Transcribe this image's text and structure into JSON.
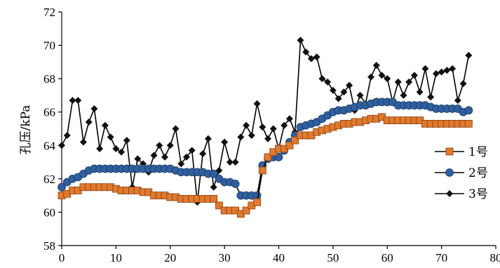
{
  "chart_data": {
    "type": "line",
    "title": "",
    "xlabel": "",
    "ylabel": "孔压/kPa",
    "xlim": [
      0,
      80
    ],
    "ylim": [
      58,
      72
    ],
    "x_ticks": [
      "0",
      "10",
      "20",
      "30",
      "40",
      "50",
      "60",
      "70",
      "80"
    ],
    "y_ticks": [
      "58",
      "60",
      "62",
      "64",
      "66",
      "68",
      "70",
      "72"
    ],
    "grid": false,
    "legend_position": "right",
    "series": [
      {
        "name": "1号",
        "color": "#e07a2e",
        "marker": "square",
        "x": [
          0,
          1,
          2,
          3,
          4,
          5,
          6,
          7,
          8,
          9,
          10,
          11,
          12,
          13,
          14,
          15,
          16,
          17,
          18,
          19,
          20,
          21,
          22,
          23,
          24,
          25,
          26,
          27,
          28,
          29,
          30,
          31,
          32,
          33,
          34,
          35,
          36,
          37,
          38,
          39,
          40,
          41,
          42,
          43,
          44,
          45,
          46,
          47,
          48,
          49,
          50,
          51,
          52,
          53,
          54,
          55,
          56,
          57,
          58,
          59,
          60,
          61,
          62,
          63,
          64,
          65,
          66,
          67,
          68,
          69,
          70,
          71,
          72,
          73,
          74,
          75
        ],
        "values": [
          61.0,
          61.1,
          61.3,
          61.3,
          61.5,
          61.5,
          61.5,
          61.5,
          61.5,
          61.5,
          61.4,
          61.3,
          61.3,
          61.3,
          61.3,
          61.2,
          61.2,
          61.0,
          61.0,
          61.0,
          60.9,
          60.9,
          60.8,
          60.8,
          60.8,
          60.8,
          60.8,
          60.8,
          60.8,
          60.4,
          60.1,
          60.1,
          60.1,
          59.9,
          60.1,
          60.4,
          60.6,
          62.5,
          63.3,
          63.6,
          63.8,
          63.8,
          64.0,
          64.3,
          64.6,
          64.6,
          64.6,
          64.8,
          64.9,
          65.0,
          65.1,
          65.2,
          65.3,
          65.3,
          65.4,
          65.4,
          65.5,
          65.6,
          65.6,
          65.7,
          65.5,
          65.5,
          65.5,
          65.5,
          65.5,
          65.5,
          65.5,
          65.3,
          65.3,
          65.3,
          65.3,
          65.3,
          65.3,
          65.3,
          65.3,
          65.3
        ]
      },
      {
        "name": "2号",
        "color": "#2f5f9e",
        "marker": "circle",
        "x": [
          0,
          1,
          2,
          3,
          4,
          5,
          6,
          7,
          8,
          9,
          10,
          11,
          12,
          13,
          14,
          15,
          16,
          17,
          18,
          19,
          20,
          21,
          22,
          23,
          24,
          25,
          26,
          27,
          28,
          29,
          30,
          31,
          32,
          33,
          34,
          35,
          36,
          37,
          38,
          39,
          40,
          41,
          42,
          43,
          44,
          45,
          46,
          47,
          48,
          49,
          50,
          51,
          52,
          53,
          54,
          55,
          56,
          57,
          58,
          59,
          60,
          61,
          62,
          63,
          64,
          65,
          66,
          67,
          68,
          69,
          70,
          71,
          72,
          73,
          74,
          75
        ],
        "values": [
          61.5,
          61.8,
          62.0,
          62.1,
          62.3,
          62.5,
          62.6,
          62.6,
          62.6,
          62.6,
          62.6,
          62.6,
          62.6,
          62.6,
          62.6,
          62.6,
          62.6,
          62.6,
          62.6,
          62.6,
          62.6,
          62.5,
          62.4,
          62.4,
          62.4,
          62.4,
          62.4,
          62.3,
          62.3,
          62.0,
          61.8,
          61.8,
          61.7,
          61.0,
          61.0,
          61.0,
          61.0,
          62.8,
          63.2,
          63.3,
          63.3,
          63.7,
          64.2,
          64.6,
          65.1,
          65.2,
          65.3,
          65.4,
          65.6,
          65.8,
          66.0,
          66.1,
          66.1,
          66.2,
          66.3,
          66.4,
          66.4,
          66.5,
          66.6,
          66.6,
          66.6,
          66.6,
          66.4,
          66.4,
          66.4,
          66.4,
          66.4,
          66.4,
          66.3,
          66.2,
          66.2,
          66.2,
          66.2,
          66.2,
          66.0,
          66.1
        ]
      },
      {
        "name": "3号",
        "color": "#111111",
        "marker": "diamond",
        "x": [
          0,
          1,
          2,
          3,
          4,
          5,
          6,
          7,
          8,
          9,
          10,
          11,
          12,
          13,
          14,
          15,
          16,
          17,
          18,
          19,
          20,
          21,
          22,
          23,
          24,
          25,
          26,
          27,
          28,
          29,
          30,
          31,
          32,
          33,
          34,
          35,
          36,
          37,
          38,
          39,
          40,
          41,
          42,
          43,
          44,
          45,
          46,
          47,
          48,
          49,
          50,
          51,
          52,
          53,
          54,
          55,
          56,
          57,
          58,
          59,
          60,
          61,
          62,
          63,
          64,
          65,
          66,
          67,
          68,
          69,
          70,
          71,
          72,
          73,
          74,
          75
        ],
        "values": [
          64.0,
          64.6,
          66.7,
          66.7,
          64.2,
          65.4,
          66.2,
          63.8,
          65.2,
          64.5,
          63.8,
          63.6,
          64.3,
          61.5,
          63.2,
          62.9,
          62.4,
          63.4,
          64.0,
          63.3,
          64.0,
          65.0,
          62.9,
          63.3,
          63.7,
          60.6,
          63.5,
          64.4,
          61.5,
          62.5,
          64.2,
          63.0,
          63.0,
          64.5,
          65.2,
          64.6,
          66.5,
          65.1,
          64.4,
          65.0,
          63.8,
          65.2,
          65.6,
          64.8,
          70.3,
          69.6,
          69.2,
          69.3,
          68.0,
          67.8,
          67.3,
          66.8,
          67.2,
          67.6,
          66.1,
          67.0,
          66.5,
          68.1,
          68.8,
          68.2,
          68.0,
          66.6,
          67.8,
          67.0,
          67.8,
          68.2,
          67.2,
          68.6,
          66.9,
          68.3,
          68.4,
          68.5,
          68.6,
          66.7,
          67.7,
          69.4
        ]
      }
    ]
  }
}
